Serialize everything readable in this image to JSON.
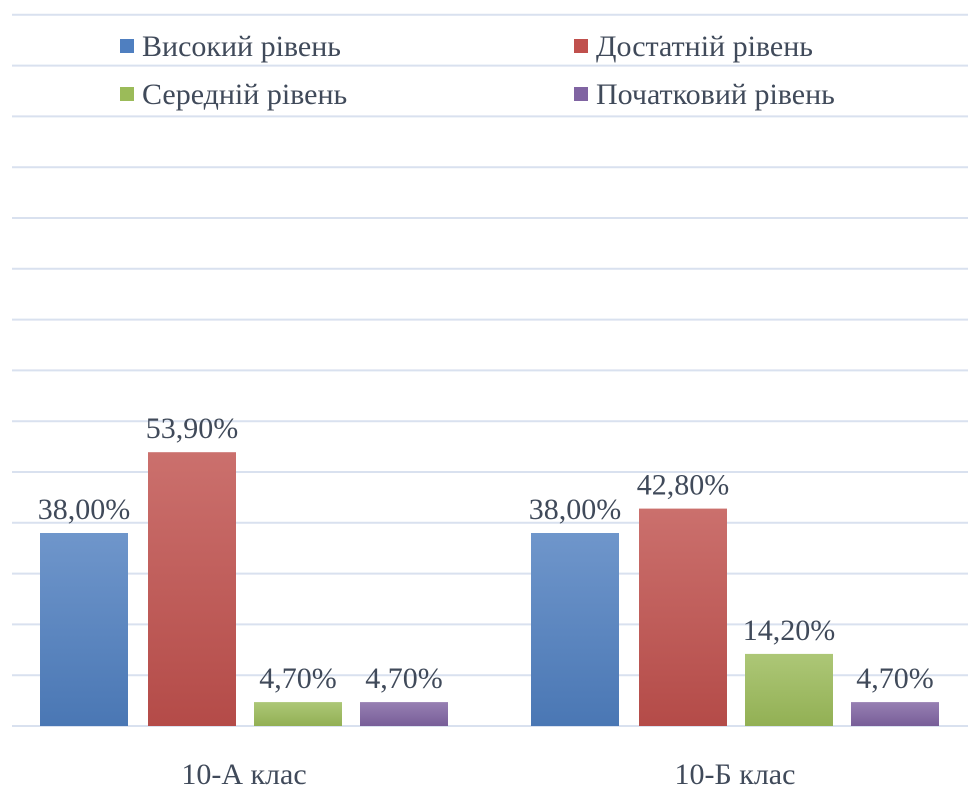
{
  "chart_data": {
    "type": "bar",
    "title": "",
    "xlabel": "",
    "ylabel": "",
    "ylim": [
      0,
      60
    ],
    "grid": true,
    "legend_position": "top",
    "categories": [
      "10-А клас",
      "10-Б клас"
    ],
    "series": [
      {
        "name": "Високий рівень",
        "color": "#4f7fc0",
        "values": [
          38.0,
          38.0
        ],
        "labels": [
          "38,00%",
          "38,00%"
        ]
      },
      {
        "name": "Достатній рівень",
        "color": "#c0504d",
        "values": [
          53.9,
          42.8
        ],
        "labels": [
          "53,90%",
          "42,80%"
        ]
      },
      {
        "name": "Середній рівень",
        "color": "#9bbb59",
        "values": [
          4.7,
          14.2
        ],
        "labels": [
          "4,70%",
          "14,20%"
        ]
      },
      {
        "name": "Початковий рівень",
        "color": "#8064a2",
        "values": [
          4.7,
          4.7
        ],
        "labels": [
          "4,70%",
          "4,70%"
        ]
      }
    ]
  }
}
